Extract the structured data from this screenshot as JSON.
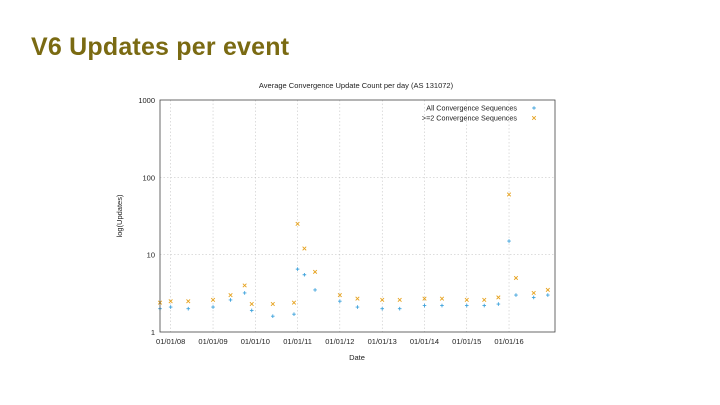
{
  "slide": {
    "title": "V6 Updates per event"
  },
  "chart_data": {
    "type": "scatter",
    "title": "Average Convergence Update Count per day (AS 131072)",
    "xlabel": "Date",
    "ylabel": "log(Updates)",
    "yscale": "log",
    "ylim": [
      1,
      1000
    ],
    "yticks": [
      1,
      10,
      100,
      1000
    ],
    "ytick_labels": [
      "1",
      "10",
      "100",
      "1000"
    ],
    "xlim": [
      "2007-10-01",
      "2017-02-01"
    ],
    "xticks": [
      "2008-01-01",
      "2009-01-01",
      "2010-01-01",
      "2011-01-01",
      "2012-01-01",
      "2013-01-01",
      "2014-01-01",
      "2015-01-01",
      "2016-01-01"
    ],
    "xtick_labels": [
      "01/01/08",
      "01/01/09",
      "01/01/10",
      "01/01/11",
      "01/01/12",
      "01/01/13",
      "01/01/14",
      "01/01/15",
      "01/01/16"
    ],
    "grid": true,
    "legend_position": "top-right",
    "series": [
      {
        "name": "All Convergence Sequences",
        "color": "#3fa3dc",
        "marker": "plus",
        "values": [
          {
            "x": "2007-10-01",
            "y": 2.0
          },
          {
            "x": "2008-01-01",
            "y": 2.1
          },
          {
            "x": "2008-06-01",
            "y": 2.0
          },
          {
            "x": "2009-01-01",
            "y": 2.1
          },
          {
            "x": "2009-06-01",
            "y": 2.6
          },
          {
            "x": "2009-10-01",
            "y": 3.2
          },
          {
            "x": "2009-12-01",
            "y": 1.9
          },
          {
            "x": "2010-06-01",
            "y": 1.6
          },
          {
            "x": "2010-12-01",
            "y": 1.7
          },
          {
            "x": "2011-01-01",
            "y": 6.5
          },
          {
            "x": "2011-03-01",
            "y": 5.5
          },
          {
            "x": "2011-06-01",
            "y": 3.5
          },
          {
            "x": "2012-01-01",
            "y": 2.5
          },
          {
            "x": "2012-06-01",
            "y": 2.1
          },
          {
            "x": "2013-01-01",
            "y": 2.0
          },
          {
            "x": "2013-06-01",
            "y": 2.0
          },
          {
            "x": "2014-01-01",
            "y": 2.2
          },
          {
            "x": "2014-06-01",
            "y": 2.2
          },
          {
            "x": "2015-01-01",
            "y": 2.2
          },
          {
            "x": "2015-06-01",
            "y": 2.2
          },
          {
            "x": "2015-10-01",
            "y": 2.3
          },
          {
            "x": "2016-01-01",
            "y": 15.0
          },
          {
            "x": "2016-03-01",
            "y": 3.0
          },
          {
            "x": "2016-08-01",
            "y": 2.8
          },
          {
            "x": "2016-12-01",
            "y": 3.0
          }
        ]
      },
      {
        "name": ">=2 Convergence Sequences",
        "color": "#e6a21e",
        "marker": "cross",
        "values": [
          {
            "x": "2007-10-01",
            "y": 2.4
          },
          {
            "x": "2008-01-01",
            "y": 2.5
          },
          {
            "x": "2008-06-01",
            "y": 2.5
          },
          {
            "x": "2009-01-01",
            "y": 2.6
          },
          {
            "x": "2009-06-01",
            "y": 3.0
          },
          {
            "x": "2009-10-01",
            "y": 4.0
          },
          {
            "x": "2009-12-01",
            "y": 2.3
          },
          {
            "x": "2010-06-01",
            "y": 2.3
          },
          {
            "x": "2010-12-01",
            "y": 2.4
          },
          {
            "x": "2011-01-01",
            "y": 25.0
          },
          {
            "x": "2011-03-01",
            "y": 12.0
          },
          {
            "x": "2011-06-01",
            "y": 6.0
          },
          {
            "x": "2012-01-01",
            "y": 3.0
          },
          {
            "x": "2012-06-01",
            "y": 2.7
          },
          {
            "x": "2013-01-01",
            "y": 2.6
          },
          {
            "x": "2013-06-01",
            "y": 2.6
          },
          {
            "x": "2014-01-01",
            "y": 2.7
          },
          {
            "x": "2014-06-01",
            "y": 2.7
          },
          {
            "x": "2015-01-01",
            "y": 2.6
          },
          {
            "x": "2015-06-01",
            "y": 2.6
          },
          {
            "x": "2015-10-01",
            "y": 2.8
          },
          {
            "x": "2016-01-01",
            "y": 60.0
          },
          {
            "x": "2016-03-01",
            "y": 5.0
          },
          {
            "x": "2016-08-01",
            "y": 3.2
          },
          {
            "x": "2016-12-01",
            "y": 3.5
          }
        ]
      }
    ]
  }
}
